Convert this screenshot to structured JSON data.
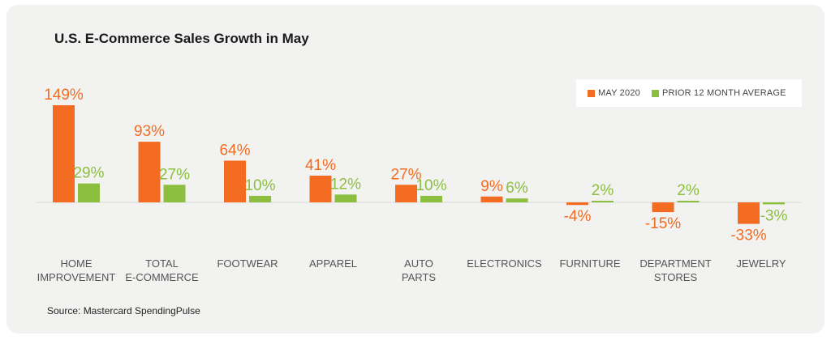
{
  "chart_data": {
    "type": "bar",
    "title": "U.S. E-Commerce Sales Growth in May",
    "categories": [
      [
        "HOME",
        "IMPROVEMENT"
      ],
      [
        "TOTAL",
        "E-COMMERCE"
      ],
      [
        "FOOTWEAR"
      ],
      [
        "APPAREL"
      ],
      [
        "AUTO",
        "PARTS"
      ],
      [
        "ELECTRONICS"
      ],
      [
        "FURNITURE"
      ],
      [
        "DEPARTMENT",
        "STORES"
      ],
      [
        "JEWELRY"
      ]
    ],
    "series": [
      {
        "name": "MAY 2020",
        "color": "#f36c21",
        "values": [
          149,
          93,
          64,
          41,
          27,
          9,
          -4,
          -15,
          -33
        ],
        "labels": [
          "149%",
          "93%",
          "64%",
          "41%",
          "27%",
          "9%",
          "-4%",
          "-15%",
          "-33%"
        ]
      },
      {
        "name": "PRIOR 12 MONTH AVERAGE",
        "color": "#8cbf3f",
        "values": [
          29,
          27,
          10,
          12,
          10,
          6,
          2,
          2,
          -3
        ],
        "labels": [
          "29%",
          "27%",
          "10%",
          "12%",
          "10%",
          "6%",
          "2%",
          "2%",
          "-3%"
        ]
      }
    ],
    "legend_position": "top-right",
    "grid": false
  },
  "source": "Source: Mastercard SpendingPulse"
}
